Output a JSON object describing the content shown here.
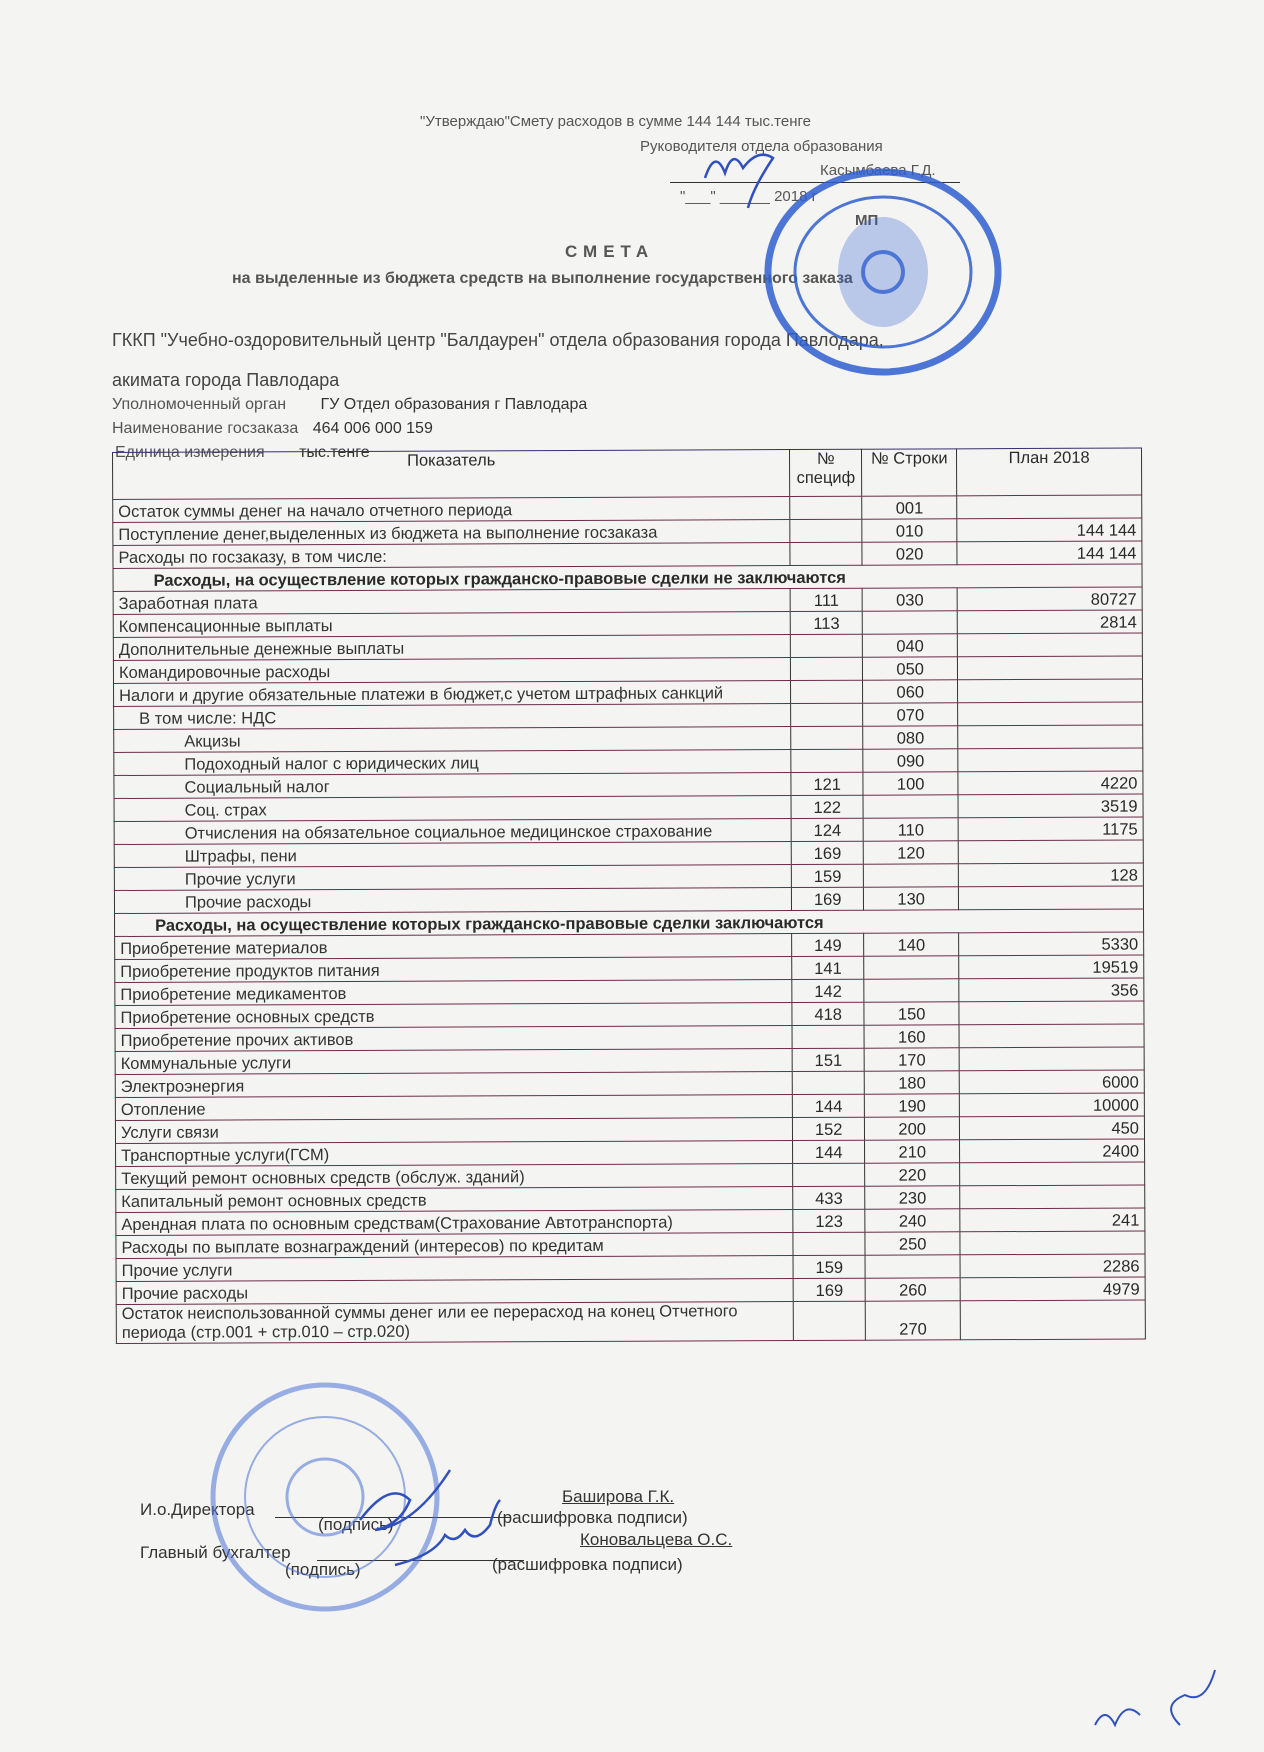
{
  "approval": {
    "line1": "\"Утверждаю\"Смету расходов в сумме  144 144 тыс.тенге",
    "line2": "Руководителя отдела образования",
    "name": "Касымбаева Г.Д.",
    "date": "\"___\" ______ 2018 г",
    "mp": "МП"
  },
  "doc": {
    "title": "СМЕТА",
    "subtitle": "на выделенные из бюджета средств на выполнение государственного заказа",
    "org_line1": "ГККП \"Учебно-оздоровительный центр \"Балдаурен\" отдела образования города Павлодара,",
    "org_line2": "акимата города Павлодара",
    "authority_label": "Уполномоченный орган",
    "authority_value": "ГУ Отдел образования г Павлодара",
    "order_label": "Наименование госзаказа",
    "order_value": "464 006 000 159",
    "unit_label": "Единица измерения",
    "unit_value": "тыс.тенге"
  },
  "table": {
    "headers": {
      "indicator": "Показатель",
      "spec": "№ специф",
      "row": "№ Строки",
      "plan": "План 2018"
    },
    "rows": [
      {
        "label": "Остаток суммы денег на начало отчетного периода",
        "spec": "",
        "row": "001",
        "plan": ""
      },
      {
        "label": "Поступление денег,выделенных из бюджета на выполнение госзаказа",
        "spec": "",
        "row": "010",
        "plan": "144 144"
      },
      {
        "label": "Расходы по госзаказу, в том числе:",
        "spec": "",
        "row": "020",
        "plan": "144 144"
      },
      {
        "section": "Расходы, на осуществление которых гражданско-правовые  сделки не заключаются"
      },
      {
        "label": "Заработная плата",
        "spec": "111",
        "row": "030",
        "plan": "80727"
      },
      {
        "label": "Компенсационные выплаты",
        "spec": "113",
        "row": "",
        "plan": "2814"
      },
      {
        "label": "Дополнительные денежные выплаты",
        "spec": "",
        "row": "040",
        "plan": ""
      },
      {
        "label": "Командировочные  расходы",
        "spec": "",
        "row": "050",
        "plan": ""
      },
      {
        "label": "Налоги и другие обязательные платежи в бюджет,с учетом штрафных санкций",
        "spec": "",
        "row": "060",
        "plan": ""
      },
      {
        "label": "В том числе:  НДС",
        "indent": 1,
        "spec": "",
        "row": "070",
        "plan": ""
      },
      {
        "label": "Акцизы",
        "indent": 2,
        "spec": "",
        "row": "080",
        "plan": ""
      },
      {
        "label": "Подоходный налог с юридических лиц",
        "indent": 2,
        "spec": "",
        "row": "090",
        "plan": ""
      },
      {
        "label": "Социальный налог",
        "indent": 2,
        "spec": "121",
        "row": "100",
        "plan": "4220"
      },
      {
        "label": "Соц. страх",
        "indent": 2,
        "spec": "122",
        "row": "",
        "plan": "3519"
      },
      {
        "label": "Отчисления на обязательное социальное медицинское страхование",
        "indent": 2,
        "spec": "124",
        "row": "110",
        "plan": "1175"
      },
      {
        "label": "Штрафы, пени",
        "indent": 2,
        "spec": "169",
        "row": "120",
        "plan": ""
      },
      {
        "label": "Прочие услуги",
        "indent": 2,
        "spec": "159",
        "row": "",
        "plan": "128"
      },
      {
        "label": "Прочие расходы",
        "indent": 2,
        "spec": "169",
        "row": "130",
        "plan": ""
      },
      {
        "section": "Расходы, на осуществление которых гражданско-правовые  сделки заключаются"
      },
      {
        "label": "Приобретение материалов",
        "spec": "149",
        "row": "140",
        "plan": "5330"
      },
      {
        "label": "Приобретение продуктов питания",
        "spec": "141",
        "row": "",
        "plan": "19519"
      },
      {
        "label": "Приобретение медикаментов",
        "spec": "142",
        "row": "",
        "plan": "356"
      },
      {
        "label": "Приобретение основных средств",
        "spec": "418",
        "row": "150",
        "plan": ""
      },
      {
        "label": "Приобретение прочих активов",
        "spec": "",
        "row": "160",
        "plan": ""
      },
      {
        "label": "Коммунальные  услуги",
        "spec": "151",
        "row": "170",
        "plan": ""
      },
      {
        "label": "Электроэнергия",
        "spec": "",
        "row": "180",
        "plan": "6000"
      },
      {
        "label": "Отопление",
        "spec": "144",
        "row": "190",
        "plan": "10000"
      },
      {
        "label": "Услуги связи",
        "spec": "152",
        "row": "200",
        "plan": "450"
      },
      {
        "label": "Транспортные услуги(ГСМ)",
        "spec": "144",
        "row": "210",
        "plan": "2400"
      },
      {
        "label": "Текущий ремонт основных средств (обслуж. зданий)",
        "spec": "",
        "row": "220",
        "plan": ""
      },
      {
        "label": "Капитальный ремонт основных средств",
        "spec": "433",
        "row": "230",
        "plan": ""
      },
      {
        "label": "Арендная плата по основным средствам(Страхование Автотранспорта)",
        "spec": "123",
        "row": "240",
        "plan": "241"
      },
      {
        "label": "Расходы  по выплате вознаграждений (интересов) по кредитам",
        "spec": "",
        "row": "250",
        "plan": ""
      },
      {
        "label": "Прочие услуги",
        "spec": "159",
        "row": "",
        "plan": "2286"
      },
      {
        "label": "Прочие расходы",
        "spec": "169",
        "row": "260",
        "plan": "4979"
      },
      {
        "label": "Остаток неиспользованной суммы денег или ее перерасход на конец Отчетного периода (стр.001 + стр.010 – стр.020)",
        "spec": "",
        "row": "270",
        "plan": ""
      }
    ]
  },
  "signatures": {
    "director_label": "И.о.Директора",
    "director_name": "Баширова Г.К.",
    "accountant_label": "Главный бухгалтер",
    "accountant_name": "Коновальцева О.С.",
    "signature_caption": "(подпись)",
    "decode_caption": "(расшифровка подписи)"
  },
  "colors": {
    "stamp": "#2f5fd0",
    "ink": "#2a2a2a",
    "paper": "#f4f4f2"
  }
}
